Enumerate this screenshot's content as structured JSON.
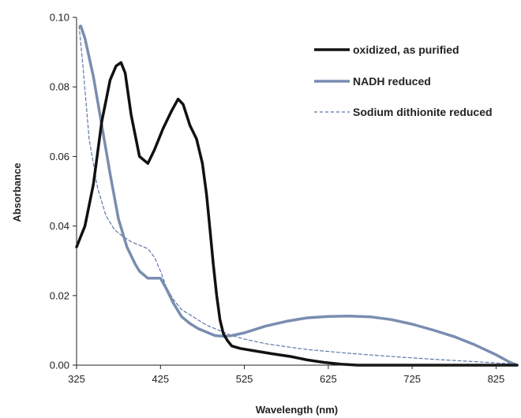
{
  "chart_data": {
    "type": "line",
    "title": "",
    "xlabel": "Wavelength (nm)",
    "ylabel": "Absorbance",
    "xlim": [
      325,
      850
    ],
    "ylim": [
      0,
      0.1
    ],
    "x_ticks": [
      325,
      425,
      525,
      625,
      725,
      825
    ],
    "x_tick_labels": [
      "325",
      "425",
      "525",
      "625",
      "725",
      "825"
    ],
    "y_ticks": [
      0,
      0.02,
      0.04,
      0.06,
      0.08,
      0.1
    ],
    "y_tick_labels": [
      "0.00",
      "0.02",
      "0.04",
      "0.06",
      "0.08",
      "0.10"
    ],
    "grid": false,
    "legend_position": "top-right",
    "series": [
      {
        "name": "oxidized, as purified",
        "color": "#111111",
        "style": "solid-thick",
        "x": [
          325,
          335,
          345,
          355,
          365,
          372,
          378,
          383,
          390,
          400,
          410,
          418,
          428,
          438,
          446,
          452,
          460,
          468,
          475,
          480,
          484,
          488,
          492,
          496,
          500,
          505,
          510,
          520,
          540,
          560,
          580,
          600,
          620,
          640,
          660,
          700,
          750,
          800,
          850
        ],
        "y": [
          0.034,
          0.04,
          0.052,
          0.07,
          0.082,
          0.086,
          0.087,
          0.084,
          0.072,
          0.06,
          0.058,
          0.062,
          0.068,
          0.073,
          0.0765,
          0.075,
          0.069,
          0.065,
          0.058,
          0.049,
          0.039,
          0.029,
          0.02,
          0.013,
          0.009,
          0.007,
          0.0055,
          0.0048,
          0.004,
          0.0032,
          0.0025,
          0.0015,
          0.0008,
          0.0003,
          0.0,
          0.0,
          0.0,
          0.0,
          0.0
        ]
      },
      {
        "name": "NADH reduced",
        "color": "#7a8db0",
        "style": "solid-thick",
        "x": [
          330,
          335,
          345,
          355,
          365,
          375,
          385,
          395,
          400,
          410,
          420,
          425,
          432,
          440,
          450,
          460,
          470,
          480,
          490,
          500,
          510,
          525,
          550,
          575,
          600,
          625,
          650,
          675,
          700,
          725,
          750,
          775,
          800,
          825,
          840,
          850
        ],
        "y": [
          0.0975,
          0.094,
          0.083,
          0.069,
          0.055,
          0.042,
          0.034,
          0.029,
          0.027,
          0.025,
          0.025,
          0.025,
          0.022,
          0.018,
          0.014,
          0.012,
          0.0105,
          0.0095,
          0.0085,
          0.0083,
          0.0085,
          0.0093,
          0.0112,
          0.0126,
          0.0136,
          0.014,
          0.0141,
          0.0139,
          0.0131,
          0.0118,
          0.0101,
          0.0082,
          0.0058,
          0.003,
          0.001,
          0.0
        ]
      },
      {
        "name": "Sodium dithionite reduced",
        "color": "#5c77a8",
        "style": "dashed-thin",
        "x": [
          328,
          333,
          340,
          350,
          360,
          370,
          380,
          390,
          400,
          410,
          418,
          425,
          432,
          440,
          450,
          460,
          470,
          480,
          490,
          500,
          510,
          525,
          550,
          575,
          600,
          650,
          700,
          750,
          800,
          850
        ],
        "y": [
          0.0975,
          0.085,
          0.065,
          0.051,
          0.043,
          0.039,
          0.037,
          0.0355,
          0.0345,
          0.0335,
          0.031,
          0.027,
          0.0225,
          0.019,
          0.016,
          0.0145,
          0.013,
          0.0115,
          0.0105,
          0.0095,
          0.0085,
          0.0075,
          0.0062,
          0.0053,
          0.0045,
          0.0034,
          0.0025,
          0.0017,
          0.001,
          0.0003
        ]
      }
    ]
  }
}
